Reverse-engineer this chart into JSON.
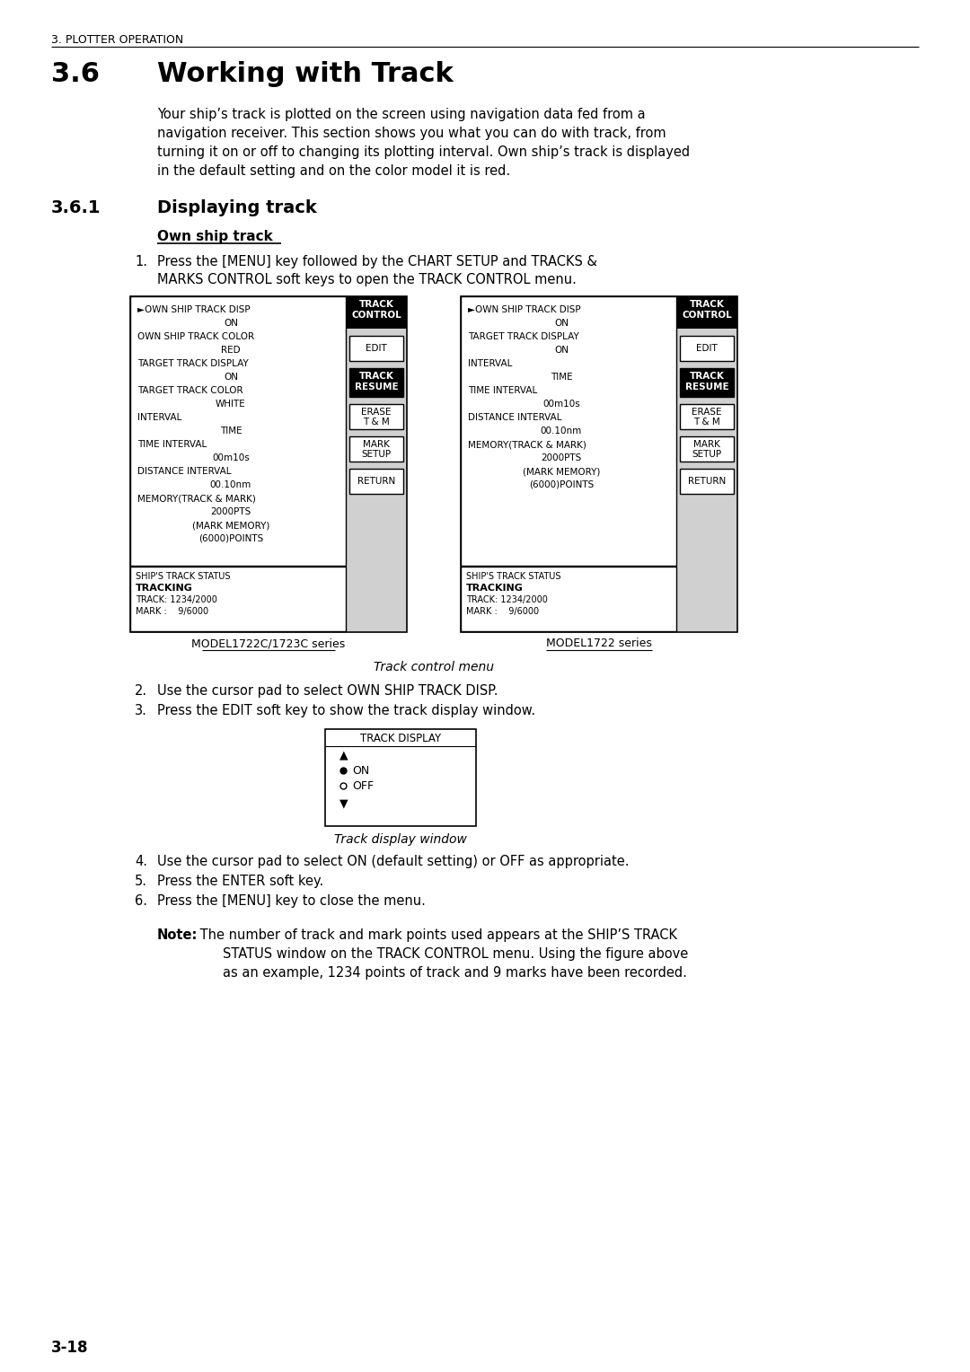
{
  "page_bg": "#ffffff",
  "header_text": "3. PLOTTER OPERATION",
  "title_number": "3.6",
  "title_text": "Working with Track",
  "body_lines": [
    "Your ship’s track is plotted on the screen using navigation data fed from a",
    "navigation receiver. This section shows you what you can do with track, from",
    "turning it on or off to changing its plotting interval. Own ship’s track is displayed",
    "in the default setting and on the color model it is red."
  ],
  "section_number": "3.6.1",
  "section_title": "Displaying track",
  "subsection_title": "Own ship track",
  "step1a": "Press the [MENU] key followed by the CHART SETUP and TRACKS &",
  "step1b": "MARKS CONTROL soft keys to open the TRACK CONTROL menu.",
  "step2_text": "Use the cursor pad to select OWN SHIP TRACK DISP.",
  "step3_text": "Press the EDIT soft key to show the track display window.",
  "step4_text": "Use the cursor pad to select ON (default setting) or OFF as appropriate.",
  "step5_text": "Press the ENTER soft key.",
  "step6_text": "Press the [MENU] key to close the menu.",
  "note_bold": "Note:",
  "note_line1": " The number of track and mark points used appears at the SHIP’S TRACK",
  "note_line2": "STATUS window on the TRACK CONTROL menu. Using the figure above",
  "note_line3": "as an example, 1234 points of track and 9 marks have been recorded.",
  "menu1_label": "MODEL1722C/1723C series",
  "menu2_label": "MODEL1722 series",
  "track_ctrl_caption": "Track control menu",
  "track_disp_caption": "Track display window",
  "page_number": "3-18",
  "menu1_lines": [
    [
      "►OWN SHIP TRACK DISP",
      false
    ],
    [
      "ON",
      false
    ],
    [
      "OWN SHIP TRACK COLOR",
      false
    ],
    [
      "RED",
      false
    ],
    [
      "TARGET TRACK DISPLAY",
      false
    ],
    [
      "ON",
      false
    ],
    [
      "TARGET TRACK COLOR",
      false
    ],
    [
      "WHITE",
      false
    ],
    [
      "INTERVAL",
      false
    ],
    [
      "TIME",
      false
    ],
    [
      "TIME INTERVAL",
      false
    ],
    [
      "00m10s",
      false
    ],
    [
      "DISTANCE INTERVAL",
      false
    ],
    [
      "00.10nm",
      false
    ],
    [
      "MEMORY(TRACK & MARK)",
      false
    ],
    [
      "2000PTS",
      false
    ],
    [
      "(MARK MEMORY)",
      false
    ],
    [
      "(6000)POINTS",
      false
    ]
  ],
  "menu2_lines": [
    [
      "►OWN SHIP TRACK DISP",
      false
    ],
    [
      "ON",
      false
    ],
    [
      "TARGET TRACK DISPLAY",
      false
    ],
    [
      "ON",
      false
    ],
    [
      "INTERVAL",
      false
    ],
    [
      "TIME",
      false
    ],
    [
      "TIME INTERVAL",
      false
    ],
    [
      "00m10s",
      false
    ],
    [
      "DISTANCE INTERVAL",
      false
    ],
    [
      "00.10nm",
      false
    ],
    [
      "MEMORY(TRACK & MARK)",
      false
    ],
    [
      "2000PTS",
      false
    ],
    [
      "(MARK MEMORY)",
      false
    ],
    [
      "(6000)POINTS",
      false
    ]
  ],
  "status_line1": "SHIP'S TRACK STATUS",
  "status_line2": "TRACKING",
  "status_line3": "TRACK: 1234/2000",
  "status_line4": "MARK :    9/6000"
}
